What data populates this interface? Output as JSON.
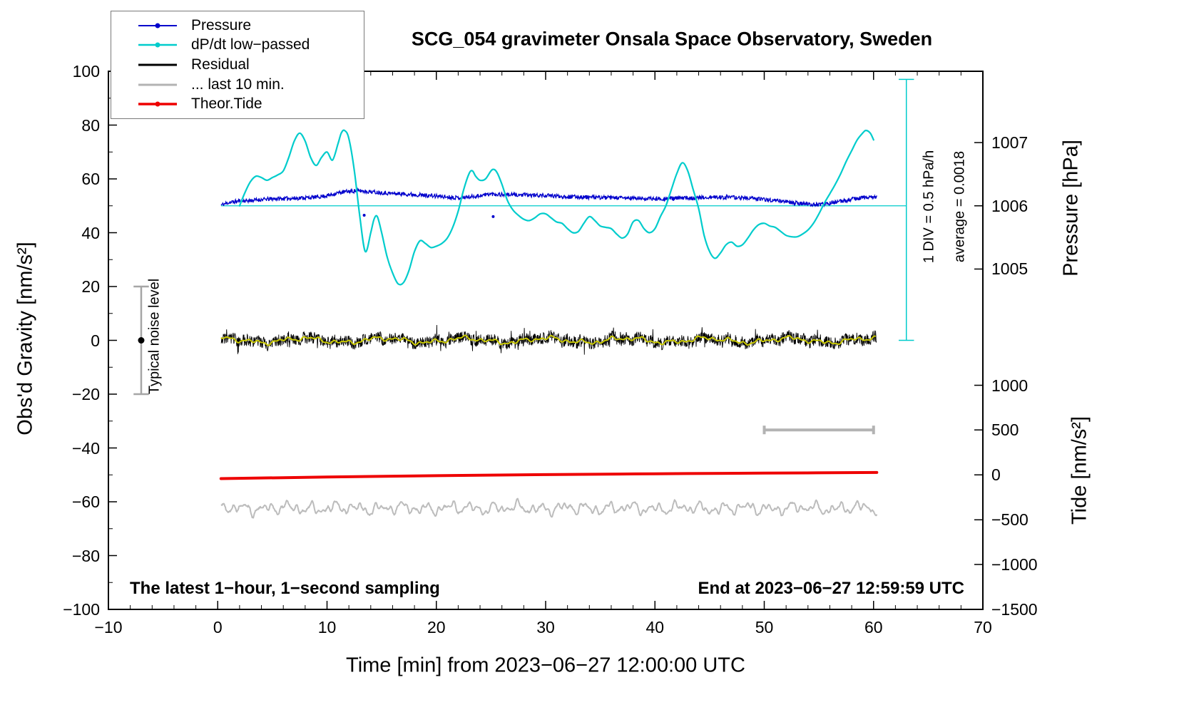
{
  "annotations": {
    "sampling_note": "The latest 1−hour, 1−second sampling",
    "end_note": "End at 2023−06−27 12:59:59 UTC",
    "div_note": "1 DIV = 0.5 hPa/h",
    "average_note": "average = 0.0018",
    "noise_label": "Typical noise level"
  },
  "legend": {
    "items": [
      {
        "label": "Pressure",
        "color": "#0000cc",
        "marker": "line-dot",
        "width": 2
      },
      {
        "label": "dP/dt low−passed",
        "color": "#00cccc",
        "marker": "line-dot",
        "width": 2.5
      },
      {
        "label": "Residual",
        "color": "#000000",
        "marker": "line",
        "width": 3
      },
      {
        "label": "... last 10 min.",
        "color": "#b3b3b3",
        "marker": "line",
        "width": 3
      },
      {
        "label": "Theor.Tide",
        "color": "#ee0000",
        "marker": "line-dot",
        "width": 3.5
      }
    ]
  },
  "chart_data": {
    "type": "line",
    "title": "SCG_054 gravimeter Onsala Space Observatory, Sweden",
    "xlabel": "Time [min] from 2023−06−27 12:00:00 UTC",
    "ylabel_left": "Obs'd Gravity [nm/s²]",
    "ylabel_right_pressure": "Pressure [hPa]",
    "ylabel_right_tide": "Tide [nm/s²]",
    "xlim": [
      -10,
      70
    ],
    "ylim_left": [
      -100,
      100
    ],
    "x_minor_step": 2,
    "y_minor_step": 10,
    "x_ticks": {
      "values": [
        -10,
        0,
        10,
        20,
        30,
        40,
        50,
        60,
        70
      ],
      "labels": [
        "−10",
        "0",
        "10",
        "20",
        "30",
        "40",
        "50",
        "60",
        "70"
      ]
    },
    "y_ticks_left": {
      "values": [
        -100,
        -80,
        -60,
        -40,
        -20,
        0,
        20,
        40,
        60,
        80,
        100
      ],
      "labels": [
        "−100",
        "−80",
        "−60",
        "−40",
        "−20",
        "0",
        "20",
        "40",
        "60",
        "80",
        "100"
      ]
    },
    "y_ticks_pressure": {
      "hpa_values": [
        1007,
        1006,
        1005
      ],
      "labels": [
        "1007",
        "1006",
        "1005"
      ],
      "gravity_positions": [
        73.5,
        50,
        26.5
      ],
      "mapping_note": "left-axis 50 = 1006 hPa, 23.5 left-axis units per hPa"
    },
    "y_ticks_tide": {
      "tide_values": [
        1000,
        500,
        0,
        -500,
        -1000,
        -1500
      ],
      "labels": [
        "1000",
        "500",
        "0",
        "−500",
        "−1000",
        "−1500"
      ],
      "gravity_positions": [
        -16.7,
        -33.3,
        -50,
        -66.7,
        -83.3,
        -100
      ],
      "mapping_note": "left-axis -50 = tide 0, 16.7 left-axis units per 500 nm/s²"
    },
    "series": [
      {
        "name": "Pressure",
        "axis": "pressure",
        "color": "#0000cc",
        "style": "noisy-line",
        "width": 1.3,
        "noise": 0.75,
        "seed": 11,
        "step": 0.04,
        "keypoints": [
          [
            0.3,
            50.3
          ],
          [
            1,
            51.2
          ],
          [
            2,
            51.8
          ],
          [
            3,
            52.0
          ],
          [
            4,
            52.3
          ],
          [
            5,
            52.6
          ],
          [
            6,
            52.7
          ],
          [
            7,
            52.8
          ],
          [
            8,
            53.0
          ],
          [
            9,
            53.2
          ],
          [
            10,
            53.8
          ],
          [
            11,
            54.8
          ],
          [
            12,
            55.4
          ],
          [
            13,
            55.6
          ],
          [
            14,
            55.2
          ],
          [
            15,
            54.9
          ],
          [
            16,
            54.6
          ],
          [
            17,
            54.4
          ],
          [
            18,
            54.2
          ],
          [
            19,
            53.9
          ],
          [
            20,
            53.6
          ],
          [
            21,
            53.3
          ],
          [
            22,
            53.0
          ],
          [
            23,
            53.3
          ],
          [
            24,
            53.8
          ],
          [
            25,
            54.4
          ],
          [
            26,
            54.2
          ],
          [
            27,
            54.1
          ],
          [
            28,
            54.0
          ],
          [
            29,
            53.9
          ],
          [
            30,
            53.8
          ],
          [
            31,
            53.6
          ],
          [
            32,
            53.4
          ],
          [
            33,
            53.3
          ],
          [
            34,
            53.2
          ],
          [
            35,
            53.1
          ],
          [
            36,
            53.0
          ],
          [
            37,
            52.9
          ],
          [
            38,
            52.8
          ],
          [
            39,
            52.7
          ],
          [
            40,
            52.6
          ],
          [
            41,
            52.7
          ],
          [
            42,
            52.8
          ],
          [
            43,
            52.9
          ],
          [
            44,
            53.0
          ],
          [
            45,
            53.1
          ],
          [
            46,
            53.2
          ],
          [
            47,
            53.1
          ],
          [
            48,
            53.0
          ],
          [
            49,
            52.7
          ],
          [
            50,
            52.4
          ],
          [
            51,
            52.0
          ],
          [
            52,
            51.6
          ],
          [
            53,
            51.0
          ],
          [
            54,
            50.6
          ],
          [
            55,
            50.4
          ],
          [
            56,
            51.0
          ],
          [
            57,
            51.6
          ],
          [
            58,
            52.4
          ],
          [
            59,
            53.0
          ],
          [
            60.3,
            53.4
          ]
        ],
        "outliers": [
          [
            13.4,
            46.5
          ],
          [
            25.2,
            46.0
          ]
        ]
      },
      {
        "name": "dP/dt low−passed",
        "axis": "left (scaled, 1 DIV = 0.5 hPa/h)",
        "color": "#00cccc",
        "style": "smooth",
        "width": 2.2,
        "keypoints": [
          [
            2,
            50
          ],
          [
            2.5,
            55
          ],
          [
            3,
            59
          ],
          [
            3.5,
            61
          ],
          [
            4,
            60.5
          ],
          [
            4.5,
            59.5
          ],
          [
            5,
            60.5
          ],
          [
            5.5,
            61.5
          ],
          [
            6,
            63
          ],
          [
            6.5,
            68
          ],
          [
            7,
            74
          ],
          [
            7.5,
            77
          ],
          [
            8,
            74
          ],
          [
            8.5,
            68
          ],
          [
            9,
            65
          ],
          [
            9.5,
            68
          ],
          [
            10,
            70
          ],
          [
            10.5,
            67
          ],
          [
            11,
            73
          ],
          [
            11.3,
            77
          ],
          [
            11.6,
            78
          ],
          [
            12,
            75
          ],
          [
            12.5,
            63
          ],
          [
            13,
            46
          ],
          [
            13.5,
            33
          ],
          [
            14,
            40
          ],
          [
            14.3,
            45
          ],
          [
            14.6,
            46
          ],
          [
            15,
            40
          ],
          [
            15.5,
            31
          ],
          [
            16,
            25
          ],
          [
            16.5,
            21
          ],
          [
            17,
            21.5
          ],
          [
            17.5,
            26
          ],
          [
            18,
            33
          ],
          [
            18.5,
            37
          ],
          [
            19,
            36
          ],
          [
            19.5,
            34.5
          ],
          [
            20,
            35
          ],
          [
            20.5,
            36
          ],
          [
            21,
            38
          ],
          [
            21.5,
            42
          ],
          [
            22,
            48
          ],
          [
            22.5,
            56
          ],
          [
            23,
            62
          ],
          [
            23.3,
            63
          ],
          [
            23.6,
            61
          ],
          [
            24,
            59.5
          ],
          [
            24.5,
            60
          ],
          [
            25,
            63
          ],
          [
            25.3,
            63.5
          ],
          [
            25.6,
            62
          ],
          [
            26,
            58
          ],
          [
            26.5,
            52
          ],
          [
            27,
            48.5
          ],
          [
            27.5,
            46.5
          ],
          [
            28,
            45
          ],
          [
            28.5,
            44.5
          ],
          [
            29,
            45.5
          ],
          [
            29.5,
            47
          ],
          [
            30,
            47
          ],
          [
            30.5,
            45.5
          ],
          [
            31,
            44
          ],
          [
            31.5,
            43.5
          ],
          [
            32,
            41.5
          ],
          [
            32.5,
            40
          ],
          [
            33,
            40.5
          ],
          [
            33.5,
            43.5
          ],
          [
            34,
            46
          ],
          [
            34.5,
            44.5
          ],
          [
            35,
            42.5
          ],
          [
            35.5,
            42
          ],
          [
            36,
            41.5
          ],
          [
            36.5,
            39.5
          ],
          [
            37,
            38
          ],
          [
            37.5,
            39.5
          ],
          [
            38,
            44
          ],
          [
            38.5,
            44.5
          ],
          [
            39,
            41.5
          ],
          [
            39.5,
            40
          ],
          [
            40,
            41.5
          ],
          [
            40.5,
            46
          ],
          [
            41,
            50
          ],
          [
            41.5,
            56
          ],
          [
            42,
            62
          ],
          [
            42.5,
            66
          ],
          [
            43,
            63
          ],
          [
            43.5,
            56
          ],
          [
            44,
            49
          ],
          [
            44.5,
            39
          ],
          [
            45,
            33
          ],
          [
            45.5,
            30.5
          ],
          [
            46,
            32.5
          ],
          [
            46.5,
            35.5
          ],
          [
            47,
            36.5
          ],
          [
            47.5,
            35
          ],
          [
            48,
            35.5
          ],
          [
            48.5,
            38
          ],
          [
            49,
            41
          ],
          [
            49.5,
            43
          ],
          [
            50,
            43.5
          ],
          [
            50.5,
            42.5
          ],
          [
            51,
            42
          ],
          [
            51.5,
            40.5
          ],
          [
            52,
            39
          ],
          [
            52.5,
            38.5
          ],
          [
            53,
            38.5
          ],
          [
            53.5,
            39.5
          ],
          [
            54,
            41
          ],
          [
            54.5,
            43.5
          ],
          [
            55,
            47
          ],
          [
            55.5,
            51
          ],
          [
            56,
            54.5
          ],
          [
            56.5,
            58
          ],
          [
            57,
            62
          ],
          [
            57.5,
            66.5
          ],
          [
            58,
            70.5
          ],
          [
            58.5,
            74.5
          ],
          [
            59,
            77
          ],
          [
            59.3,
            78
          ],
          [
            59.7,
            77
          ],
          [
            60,
            74.5
          ]
        ]
      },
      {
        "name": "Residual",
        "axis": "left",
        "color": "#000000",
        "style": "residual",
        "width": 0.9,
        "seed": 3,
        "step": 0.03,
        "x_start": 0.3,
        "x_end": 60.3,
        "base": 0,
        "noise": 2.2,
        "spike_prob": 0.05,
        "spike_extra": 1.6,
        "center_components": [
          [
            0.8,
            0.85,
            1.2
          ],
          [
            0.5,
            2.3,
            0.4
          ],
          [
            0.4,
            4.7,
            2.0
          ],
          [
            0.3,
            8.9,
            0.9
          ]
        ]
      },
      {
        "name": "Residual low−passed",
        "axis": "left",
        "color": "#c8c800",
        "style": "slow",
        "width": 2,
        "x_start": 0.3,
        "x_end": 60.3,
        "components": [
          [
            0.8,
            0.85,
            1.2
          ],
          [
            0.5,
            2.3,
            0.4
          ],
          [
            0.4,
            4.7,
            2.0
          ],
          [
            0.3,
            8.9,
            0.9
          ]
        ]
      },
      {
        "name": "... last 10 min.",
        "axis": "left (offset display of last 10 min residual)",
        "color": "#bcbcbc",
        "style": "wiggle",
        "width": 2,
        "seed": 5,
        "step": 0.05,
        "x_start": 0.3,
        "x_end": 60.3,
        "base": -62.4,
        "noise": 0.25,
        "components": [
          [
            1.2,
            3.0,
            1.0
          ],
          [
            0.9,
            5.3,
            0.3
          ],
          [
            0.7,
            8.7,
            2.0
          ],
          [
            0.5,
            13.1,
            0.8
          ],
          [
            0.4,
            1.2,
            0.5
          ]
        ]
      },
      {
        "name": "Theor.Tide",
        "axis": "tide",
        "color": "#ee0000",
        "style": "smooth",
        "width": 4,
        "keypoints": [
          [
            0.3,
            -51.4
          ],
          [
            10,
            -50.8
          ],
          [
            20,
            -50.3
          ],
          [
            30,
            -49.9
          ],
          [
            40,
            -49.6
          ],
          [
            50,
            -49.35
          ],
          [
            60.3,
            -49.1
          ]
        ],
        "tide_values_nm_s2": "≈ -40 at 0 min rising to ≈ +27 at 60 min"
      }
    ],
    "extras": {
      "pressure_mean_line": {
        "gravity_y": 50,
        "x_min": 0.3,
        "x_max": 63,
        "color": "#00cccc",
        "width": 1.2
      },
      "div_bar": {
        "x": 63,
        "g_min": 0,
        "g_max": 97,
        "cap_half_x": 0.7,
        "color": "#00cccc",
        "width": 1.5
      },
      "noise_bar": {
        "x": -7,
        "g_min": -20,
        "g_max": 20,
        "cap_half_x": 0.7,
        "color": "#a6a6a6",
        "width": 2.5,
        "dot_g": 0,
        "dot_r": 4.5,
        "dot_color": "#000000"
      },
      "scale_bar": {
        "gravity_y": -33.3,
        "x_min": 50,
        "x_max": 60,
        "cap_half_g": 1.6,
        "color": "#b3b3b3",
        "width": 4
      }
    }
  }
}
